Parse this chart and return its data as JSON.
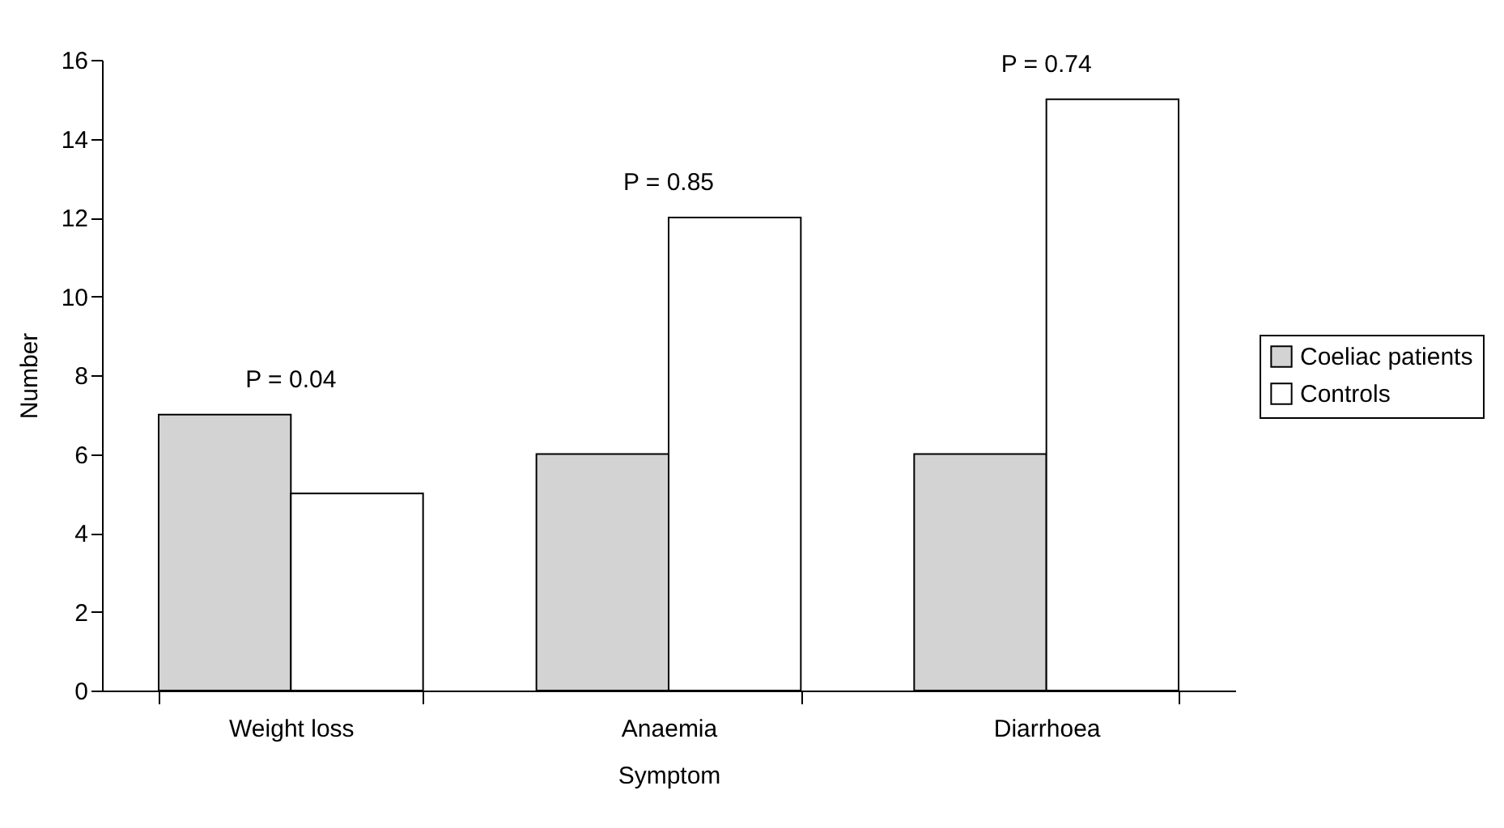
{
  "chart_data": {
    "type": "bar",
    "xlabel": "Symptom",
    "ylabel": "Number",
    "categories": [
      "Weight loss",
      "Anaemia",
      "Diarrhoea"
    ],
    "series": [
      {
        "name": "Coeliac patients",
        "color": "#d3d3d3",
        "values": [
          7,
          6,
          6
        ]
      },
      {
        "name": "Controls",
        "color": "#ffffff",
        "values": [
          5,
          12,
          15
        ]
      }
    ],
    "ylim": [
      0,
      16
    ],
    "yticks": [
      0,
      2,
      4,
      6,
      8,
      10,
      12,
      14,
      16
    ],
    "grid": false,
    "legend": "right",
    "annotations": [
      "P = 0.04",
      "P = 0.85",
      "P = 0.74"
    ]
  }
}
